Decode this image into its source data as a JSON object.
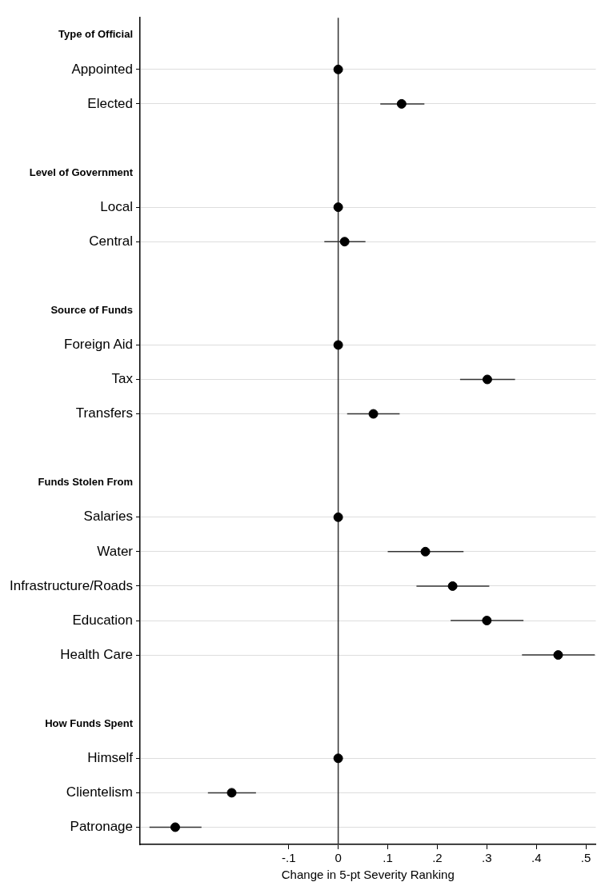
{
  "chart_data": {
    "type": "scatter",
    "orientation": "horizontal",
    "xlabel": "Change in 5-pt Severity Ranking",
    "categories": [
      "Type of Official",
      "Appointed",
      "Elected",
      null,
      "Level of Government",
      "Local",
      "Central",
      null,
      "Source of Funds",
      "Foreign Aid",
      "Tax",
      "Transfers",
      null,
      "Funds Stolen From",
      "Salaries",
      "Water",
      "Infrastructure/Roads",
      "Education",
      "Health Care",
      null,
      "How Funds Spent",
      "Himself",
      "Clientelism",
      "Patronage"
    ],
    "values": [
      null,
      0,
      0.128,
      null,
      null,
      0,
      0.013,
      null,
      null,
      0,
      0.301,
      0.071,
      null,
      null,
      0,
      0.176,
      0.231,
      0.3,
      0.444,
      null,
      null,
      0,
      -0.215,
      -0.329
    ],
    "errors": [
      null,
      null,
      [
        0.085,
        0.174
      ],
      null,
      null,
      null,
      [
        -0.028,
        0.055
      ],
      null,
      null,
      null,
      [
        0.246,
        0.357
      ],
      [
        0.018,
        0.124
      ],
      null,
      null,
      null,
      [
        0.1,
        0.253
      ],
      [
        0.158,
        0.305
      ],
      [
        0.227,
        0.374
      ],
      [
        0.371,
        0.518
      ],
      null,
      null,
      null,
      [
        -0.263,
        -0.166
      ],
      [
        -0.381,
        -0.276
      ]
    ],
    "color": "#000000",
    "marker": "circle",
    "grid": "y",
    "xlim": [
      -0.4,
      0.52
    ],
    "xticks": [
      {
        "value": -0.1,
        "label": "-.1"
      },
      0,
      {
        "value": 0.1,
        "label": ".1"
      },
      {
        "value": 0.2,
        "label": ".2"
      },
      {
        "value": 0.3,
        "label": ".3"
      },
      {
        "value": 0.4,
        "label": ".4"
      },
      {
        "value": 0.5,
        "label": ".5"
      }
    ],
    "ref_lines": [
      {
        "axis": "x",
        "value": 0,
        "color": "#333333"
      }
    ],
    "legend": false
  }
}
